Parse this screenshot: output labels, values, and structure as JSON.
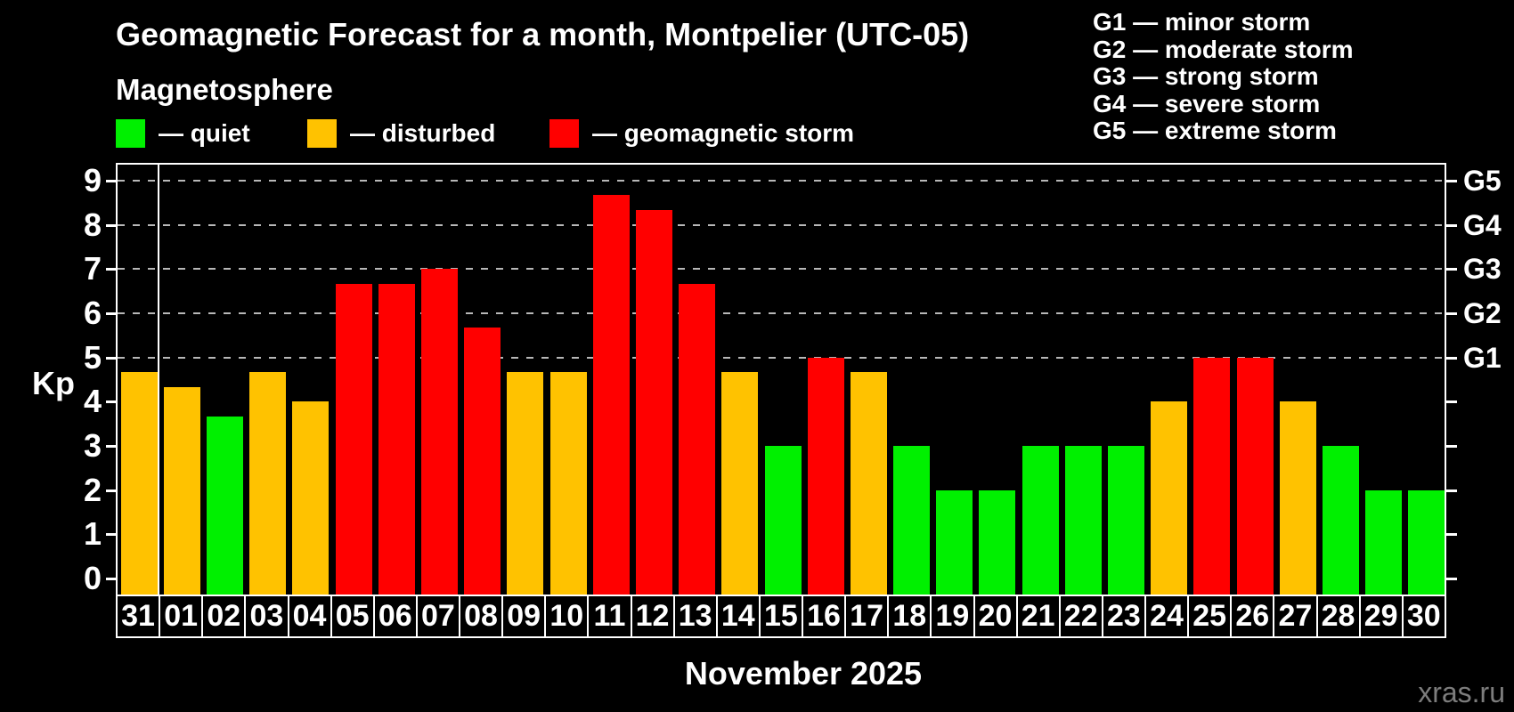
{
  "title": "Geomagnetic Forecast for a month, Montpelier (UTC-05)",
  "subtitle": "Magnetosphere",
  "legend": {
    "items": [
      {
        "key": "quiet",
        "label": "— quiet",
        "color": "#00f000"
      },
      {
        "key": "disturbed",
        "label": "— disturbed",
        "color": "#ffc200"
      },
      {
        "key": "storm",
        "label": "— geomagnetic storm",
        "color": "#ff0000"
      }
    ]
  },
  "storm_scale_legend": [
    "G1 — minor storm",
    "G2 — moderate storm",
    "G3 — strong storm",
    "G4 — severe storm",
    "G5 — extreme storm"
  ],
  "y_axis": {
    "label": "Kp",
    "tick_labels": [
      "9",
      "8",
      "7",
      "6",
      "5",
      "4",
      "3",
      "2",
      "1",
      "0"
    ]
  },
  "right_axis": {
    "labels": [
      {
        "kp": 9,
        "text": "G5"
      },
      {
        "kp": 8,
        "text": "G4"
      },
      {
        "kp": 7,
        "text": "G3"
      },
      {
        "kp": 6,
        "text": "G2"
      },
      {
        "kp": 5,
        "text": "G1"
      }
    ]
  },
  "x_axis": {
    "month_label": "November 2025"
  },
  "watermark": "xras.ru",
  "chart_data": {
    "type": "bar",
    "title": "Geomagnetic Forecast for a month, Montpelier (UTC-05)",
    "xlabel": "November 2025",
    "ylabel": "Kp",
    "ylim": [
      0,
      9
    ],
    "grid": "dashed horizontal lines at Kp 5-9 (G1-G5 levels)",
    "gridlines_at": [
      5,
      6,
      7,
      8,
      9
    ],
    "legend_position": "top",
    "month_separator_after_index": 0,
    "categories": [
      "31",
      "01",
      "02",
      "03",
      "04",
      "05",
      "06",
      "07",
      "08",
      "09",
      "10",
      "11",
      "12",
      "13",
      "14",
      "15",
      "16",
      "17",
      "18",
      "19",
      "20",
      "21",
      "22",
      "23",
      "24",
      "25",
      "26",
      "27",
      "28",
      "29",
      "30"
    ],
    "values": [
      4.67,
      4.33,
      3.67,
      4.67,
      4.0,
      6.67,
      6.67,
      7.0,
      5.67,
      4.67,
      4.67,
      8.67,
      8.33,
      6.67,
      4.67,
      3.0,
      5.0,
      4.67,
      3.0,
      2.0,
      2.0,
      3.0,
      3.0,
      3.0,
      4.0,
      5.0,
      5.0,
      4.0,
      3.0,
      2.0,
      2.0
    ],
    "statuses": [
      "disturbed",
      "disturbed",
      "quiet",
      "disturbed",
      "disturbed",
      "storm",
      "storm",
      "storm",
      "storm",
      "disturbed",
      "disturbed",
      "storm",
      "storm",
      "storm",
      "disturbed",
      "quiet",
      "storm",
      "disturbed",
      "quiet",
      "quiet",
      "quiet",
      "quiet",
      "quiet",
      "quiet",
      "disturbed",
      "storm",
      "storm",
      "disturbed",
      "quiet",
      "quiet",
      "quiet"
    ]
  }
}
